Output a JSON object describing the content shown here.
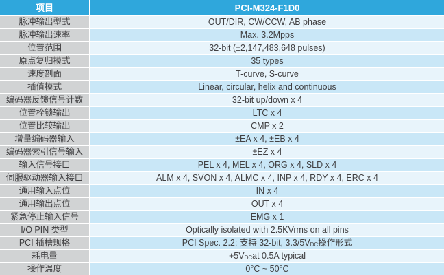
{
  "colors": {
    "header_bg": "#2FA7DC",
    "header_text": "#FFFFFF",
    "label_bg": "#D1D3D4",
    "row_odd_bg": "#E8F4FB",
    "row_even_bg": "#C9E7F7",
    "text": "#414042",
    "divider": "#FFFFFF"
  },
  "table": {
    "header": {
      "item_col": "项目",
      "model_col": "PCI-M324-F1D0"
    },
    "rows": [
      {
        "label": "脉冲输出型式",
        "value": "OUT/DIR, CW/CCW, AB phase"
      },
      {
        "label": "脉冲输出速率",
        "value": "Max. 3.2Mpps"
      },
      {
        "label": "位置范围",
        "value": "32-bit (±2,147,483,648 pulses)"
      },
      {
        "label": "原点复归模式",
        "value": "35 types"
      },
      {
        "label": "速度剖面",
        "value": "T-curve, S-curve"
      },
      {
        "label": "插值模式",
        "value": "Linear, circular, helix and continuous"
      },
      {
        "label": "编码器反馈信号计数",
        "value": "32-bit up/down x 4"
      },
      {
        "label": "位置栓锁输出",
        "value": "LTC x 4"
      },
      {
        "label": "位置比较输出",
        "value": "CMP x 2"
      },
      {
        "label": "增量编码器输入",
        "value": "±EA x 4, ±EB x 4"
      },
      {
        "label": "编码器索引信号输入",
        "value": "±EZ x 4"
      },
      {
        "label": "输入信号接口",
        "value": "PEL x 4, MEL x 4, ORG x 4, SLD x 4"
      },
      {
        "label": "伺服驱动器输入接口",
        "value": "ALM x 4, SVON x 4, ALMC x 4, INP x 4, RDY x 4, ERC x 4"
      },
      {
        "label": "通用输入点位",
        "value": "IN x 4"
      },
      {
        "label": "通用输出点位",
        "value": "OUT x 4"
      },
      {
        "label": "紧急停止输入信号",
        "value": "EMG x 1"
      },
      {
        "label": "I/O PIN 类型",
        "value": "Optically isolated with 2.5KVrms on all pins"
      },
      {
        "label": "PCI 插槽规格",
        "value": [
          {
            "t": "PCI Spec. 2.2; 支持 32-bit, 3.3/5V"
          },
          {
            "t": "DC",
            "sub": true
          },
          {
            "t": " 操作形式"
          }
        ]
      },
      {
        "label": "耗电量",
        "value": [
          {
            "t": "+5V"
          },
          {
            "t": "DC",
            "sub": true
          },
          {
            "t": " at 0.5A typical"
          }
        ]
      },
      {
        "label": "操作温度",
        "value": "0°C ~ 50°C"
      }
    ]
  }
}
